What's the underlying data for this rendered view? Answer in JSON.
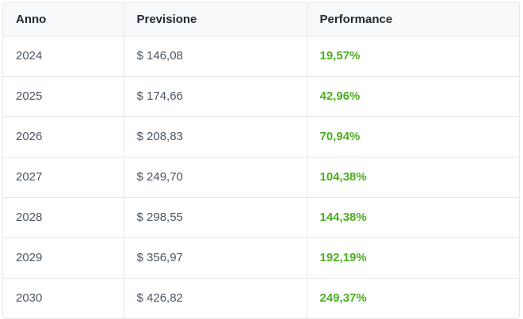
{
  "table": {
    "headers": [
      "Anno",
      "Previsione",
      "Performance"
    ],
    "rows": [
      {
        "year": "2024",
        "forecast": "$ 146,08",
        "performance": "19,57%"
      },
      {
        "year": "2025",
        "forecast": "$ 174,66",
        "performance": "42,96%"
      },
      {
        "year": "2026",
        "forecast": "$ 208,83",
        "performance": "70,94%"
      },
      {
        "year": "2027",
        "forecast": "$ 249,70",
        "performance": "104,38%"
      },
      {
        "year": "2028",
        "forecast": "$ 298,55",
        "performance": "144,38%"
      },
      {
        "year": "2029",
        "forecast": "$ 356,97",
        "performance": "192,19%"
      },
      {
        "year": "2030",
        "forecast": "$ 426,82",
        "performance": "249,37%"
      }
    ]
  },
  "colors": {
    "header_bg": "#f8f9fa",
    "border": "#e5e7eb",
    "performance_positive": "#4caf1f",
    "text": "#4b5563",
    "header_text": "#1f2937"
  }
}
